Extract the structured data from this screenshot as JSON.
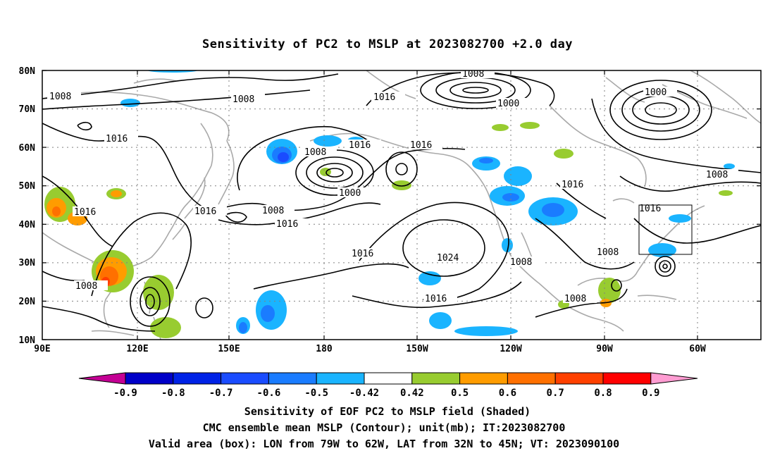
{
  "title": "Sensitivity of PC2 to MSLP at 2023082700 +2.0 day",
  "lat_labels": [
    "80N",
    "70N",
    "60N",
    "50N",
    "40N",
    "30N",
    "20N",
    "10N"
  ],
  "lon_labels": [
    "90E",
    "120E",
    "150E",
    "180",
    "150W",
    "120W",
    "90W",
    "60W"
  ],
  "contour_levels": [
    {
      "id": "c1",
      "text": "1008"
    },
    {
      "id": "c2",
      "text": "1008"
    },
    {
      "id": "c3",
      "text": "1008"
    },
    {
      "id": "c4",
      "text": "1000"
    },
    {
      "id": "c5",
      "text": "1016"
    },
    {
      "id": "c6",
      "text": "1016"
    },
    {
      "id": "c7",
      "text": "1000"
    },
    {
      "id": "c8",
      "text": "1016"
    },
    {
      "id": "c9",
      "text": "1008"
    },
    {
      "id": "c10",
      "text": "1016"
    },
    {
      "id": "c11",
      "text": "1008"
    },
    {
      "id": "c12",
      "text": "1000"
    },
    {
      "id": "c13",
      "text": "1016"
    },
    {
      "id": "c14",
      "text": "1016"
    },
    {
      "id": "c15",
      "text": "1016"
    },
    {
      "id": "c16",
      "text": "1008"
    },
    {
      "id": "c17",
      "text": "1016"
    },
    {
      "id": "c18",
      "text": "1016"
    },
    {
      "id": "c19",
      "text": "1016"
    },
    {
      "id": "c20",
      "text": "1008"
    },
    {
      "id": "c21",
      "text": "1024"
    },
    {
      "id": "c22",
      "text": "1008"
    },
    {
      "id": "c23",
      "text": "1008"
    },
    {
      "id": "c24",
      "text": "1016"
    },
    {
      "id": "c25",
      "text": "1008"
    },
    {
      "id": "c26",
      "text": "1008"
    }
  ],
  "colorbar": {
    "labels": [
      "-0.9",
      "-0.8",
      "-0.7",
      "-0.6",
      "-0.5",
      "-0.42",
      "0.42",
      "0.5",
      "0.6",
      "0.7",
      "0.8",
      "0.9"
    ],
    "colors": [
      "#c40094",
      "#0000c8",
      "#0022e6",
      "#1a4cff",
      "#1a7cff",
      "#1ab4ff",
      "#ffffff",
      "#98cc30",
      "#ff9c00",
      "#ff7000",
      "#ff4000",
      "#ff0000",
      "#ff9cd2"
    ]
  },
  "captions": [
    "Sensitivity of EOF PC2 to MSLP field (Shaded)",
    "CMC ensemble mean MSLP (Contour); unit(mb); IT:2023082700",
    "Valid area (box): LON from 79W to 62W, LAT from 32N to 45N; VT: 2023090100"
  ]
}
